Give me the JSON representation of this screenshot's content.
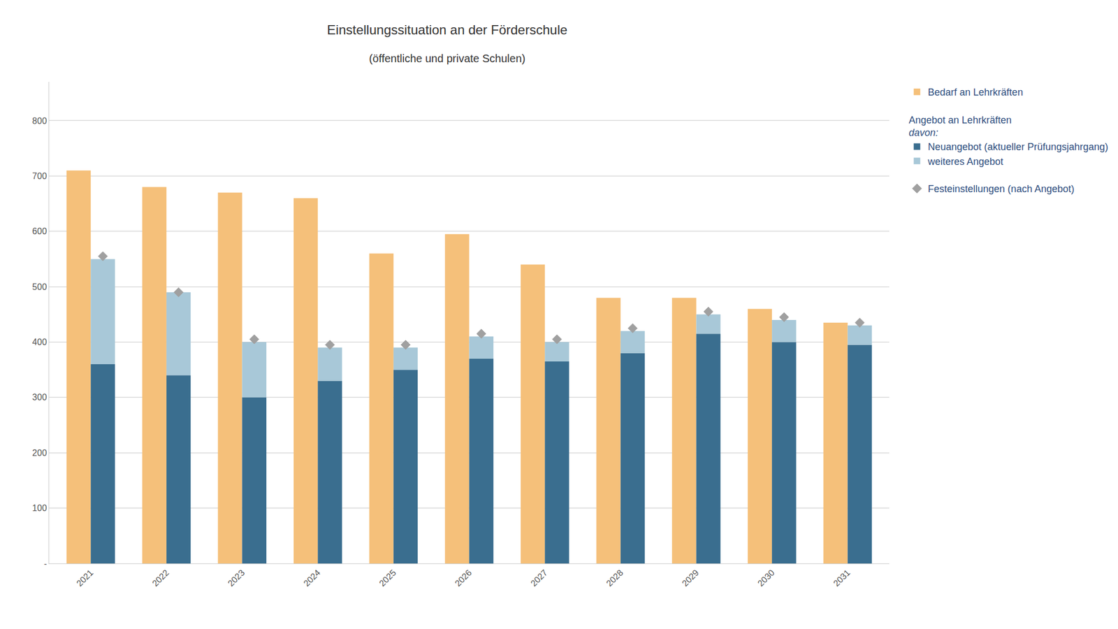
{
  "chart_data": {
    "type": "bar",
    "title": "Einstellungssituation an der Förderschule",
    "subtitle": "(öffentliche und private Schulen)",
    "categories": [
      "2021",
      "2022",
      "2023",
      "2024",
      "2025",
      "2026",
      "2027",
      "2028",
      "2029",
      "2030",
      "2031"
    ],
    "series": [
      {
        "name": "Bedarf an Lehrkräften",
        "type": "bar",
        "color": "#F5C07A",
        "values": [
          710,
          680,
          670,
          660,
          560,
          595,
          540,
          480,
          480,
          460,
          435
        ]
      },
      {
        "name": "Neuangebot (aktueller Prüfungsjahrgang)",
        "type": "bar",
        "stacked": true,
        "color": "#3A6E8F",
        "values": [
          360,
          340,
          300,
          330,
          350,
          370,
          365,
          380,
          415,
          400,
          395
        ]
      },
      {
        "name": "weiteres Angebot",
        "type": "bar",
        "stacked": true,
        "color": "#A8C8D8",
        "values": [
          190,
          150,
          100,
          60,
          40,
          40,
          35,
          40,
          35,
          40,
          35
        ]
      },
      {
        "name": "Festeinstellungen (nach Angebot)",
        "type": "scatter",
        "marker": "diamond",
        "color": "#A0A0A0",
        "values": [
          555,
          490,
          405,
          395,
          395,
          415,
          405,
          425,
          455,
          445,
          435
        ]
      }
    ],
    "legend_group_title": "Angebot an Lehrkräften",
    "legend_group_note": "davon:",
    "ylim": [
      0,
      870
    ],
    "yticks": [
      {
        "value": 0,
        "label": "-"
      },
      100,
      200,
      300,
      400,
      500,
      600,
      700,
      800
    ],
    "grid": true,
    "legend": "right"
  }
}
